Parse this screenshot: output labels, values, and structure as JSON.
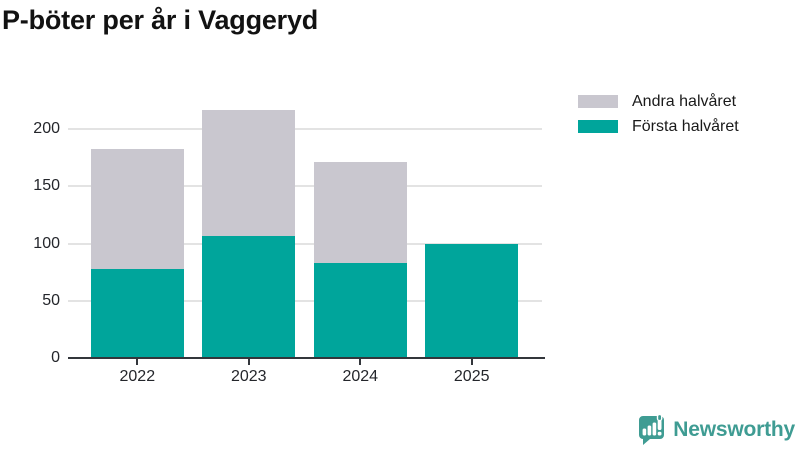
{
  "title": "P-böter per år i Vaggeryd",
  "colors": {
    "first_half": "#00a59b",
    "second_half": "#c9c7cf",
    "grid": "#e3e3e3",
    "axis": "#33363b",
    "brand_teal": "#3f9c93",
    "title_text": "#121212",
    "tick_text": "#24262b"
  },
  "legend": {
    "items": [
      {
        "label": "Andra halvåret"
      },
      {
        "label": "Första halvåret"
      }
    ]
  },
  "chart_data": {
    "type": "bar",
    "stacked": true,
    "title": "P-böter per år i Vaggeryd",
    "categories": [
      "2022",
      "2023",
      "2024",
      "2025"
    ],
    "series": [
      {
        "name": "Första halvåret",
        "values": [
          78,
          107,
          83,
          100
        ],
        "color": "#00a59b"
      },
      {
        "name": "Andra halvåret",
        "values": [
          105,
          110,
          88,
          0
        ],
        "color": "#c9c7cf"
      }
    ],
    "totals": [
      183,
      217,
      171,
      100
    ],
    "xlabel": "",
    "ylabel": "",
    "ylim": [
      0,
      230
    ],
    "yticks": [
      0,
      50,
      100,
      150,
      200
    ],
    "grid": true,
    "legend_position": "top-right"
  },
  "footer": {
    "brand": "Newsworthy"
  }
}
